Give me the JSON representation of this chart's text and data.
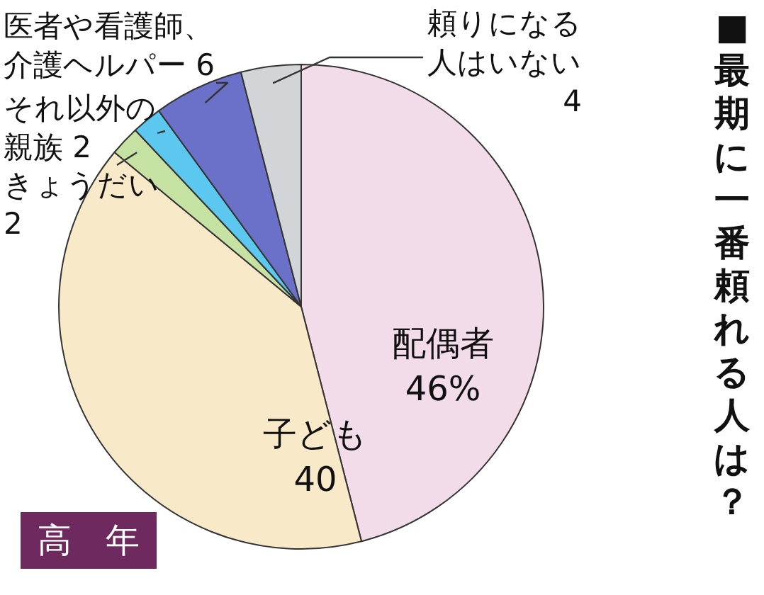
{
  "chart_data": {
    "type": "pie",
    "title": "■最期に一番頼れる人は？",
    "categories": [
      "配偶者",
      "子ども",
      "きょうだい",
      "それ以外の親族",
      "医者や看護師、介護ヘルパー",
      "頼りになる人はいない"
    ],
    "values": [
      46,
      40,
      2,
      2,
      6,
      4
    ],
    "colors": [
      "#f3dcea",
      "#f8e9c9",
      "#c6e2a2",
      "#5cc8f0",
      "#6b70c8",
      "#d2d5d8"
    ],
    "value_labels": [
      "46%",
      "40",
      "2",
      "2",
      "6",
      "4"
    ],
    "annotations": [
      "高　年"
    ]
  }
}
